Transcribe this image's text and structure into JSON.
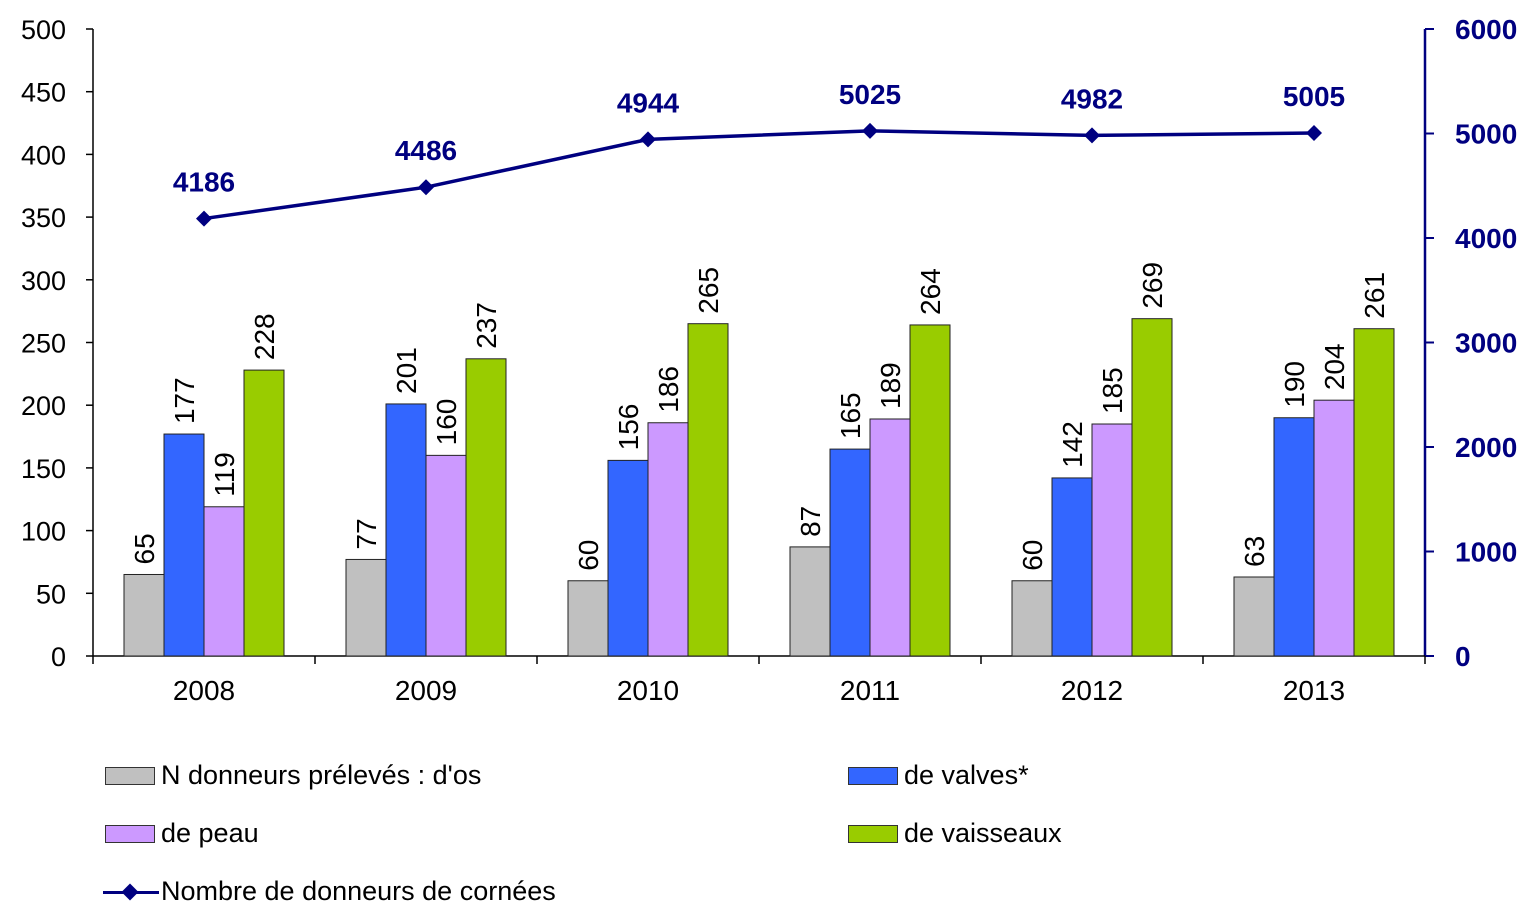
{
  "chart_data": {
    "type": "bar",
    "categories": [
      "2008",
      "2009",
      "2010",
      "2011",
      "2012",
      "2013"
    ],
    "series": [
      {
        "name": "N donneurs prélevés : d'os",
        "color": "#c0c0c0",
        "axis": "left",
        "values": [
          65,
          77,
          60,
          87,
          60,
          63
        ]
      },
      {
        "name": "de valves*",
        "color": "#3366ff",
        "axis": "left",
        "values": [
          177,
          201,
          156,
          165,
          142,
          190
        ]
      },
      {
        "name": "de peau",
        "color": "#cc99ff",
        "axis": "left",
        "values": [
          119,
          160,
          186,
          189,
          185,
          204
        ]
      },
      {
        "name": "de vaisseaux",
        "color": "#99cc00",
        "axis": "left",
        "values": [
          228,
          237,
          265,
          264,
          269,
          261
        ]
      },
      {
        "name": "Nombre de donneurs de cornées",
        "type": "line",
        "color": "#000080",
        "axis": "right",
        "values": [
          4186,
          4486,
          4944,
          5025,
          4982,
          5005
        ]
      }
    ],
    "y_left": {
      "min": 0,
      "max": 500,
      "ticks": [
        "0",
        "50",
        "100",
        "150",
        "200",
        "250",
        "300",
        "350",
        "400",
        "450",
        "500"
      ]
    },
    "y_right": {
      "min": 0,
      "max": 6000,
      "ticks": [
        "0",
        "1000",
        "2000",
        "3000",
        "4000",
        "5000",
        "6000"
      ]
    },
    "grid": false,
    "legend_placement": "bottom"
  }
}
